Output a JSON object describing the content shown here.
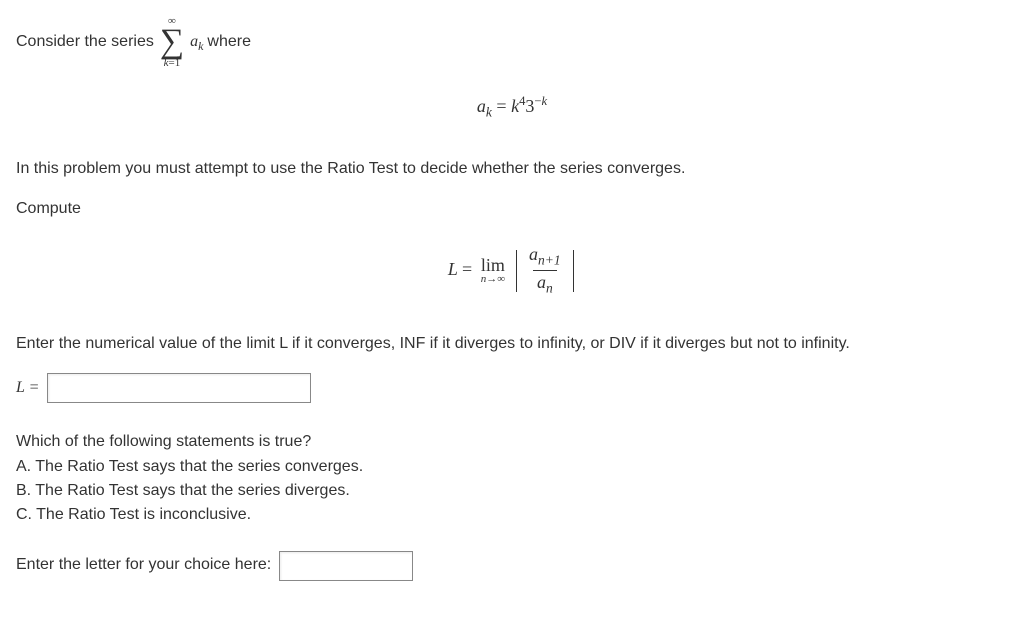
{
  "intro": {
    "prefix": "Consider the series",
    "sum_upper": "∞",
    "sum_lower_var": "k",
    "sum_lower_eq": "=1",
    "term_var": "a",
    "term_sub": "k",
    "suffix": "where"
  },
  "ak_def": {
    "lhs_var": "a",
    "lhs_sub": "k",
    "eq": " = ",
    "rhs_base1": "k",
    "rhs_exp1": "4",
    "rhs_base2": "3",
    "rhs_exp2_neg": "−",
    "rhs_exp2_var": "k"
  },
  "instruction1": "In this problem you must attempt to use the Ratio Test to decide whether the series converges.",
  "compute_label": "Compute",
  "limit_expr": {
    "L": "L",
    "eq": " = ",
    "lim": "lim",
    "lim_sub_var": "n",
    "lim_sub_arrow": "→∞",
    "num_var": "a",
    "num_sub": "n+1",
    "den_var": "a",
    "den_sub": "n"
  },
  "instruction2": "Enter the numerical value of the limit L if it converges, INF if it diverges to infinity, or DIV if it diverges but not to infinity.",
  "L_prompt": "L = ",
  "L_value": "",
  "mc": {
    "question": "Which of the following statements is true?",
    "optA": "A. The Ratio Test says that the series converges.",
    "optB": "B. The Ratio Test says that the series diverges.",
    "optC": "C. The Ratio Test is inconclusive."
  },
  "mc_prompt": "Enter the letter for your choice here:",
  "mc_value": ""
}
